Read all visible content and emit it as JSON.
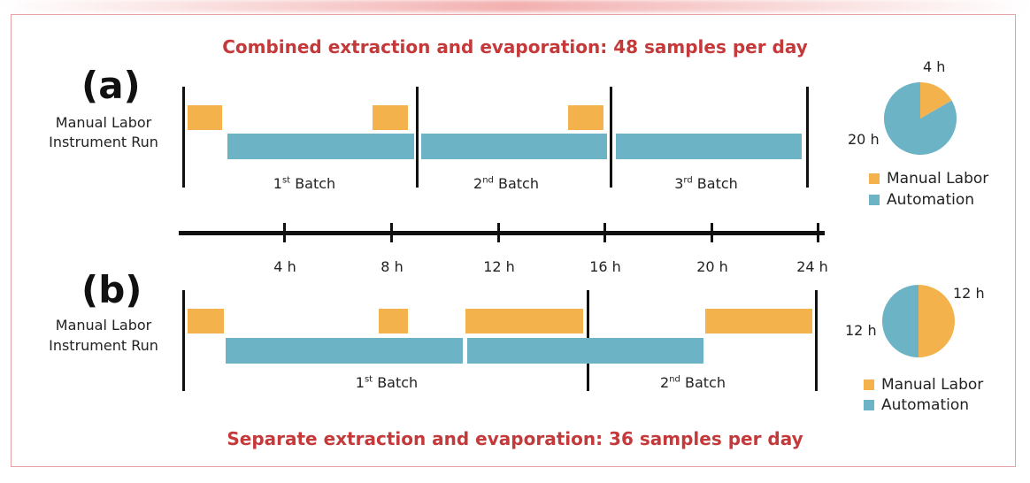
{
  "colors": {
    "manual": "#f4b24c",
    "automation": "#6db3c6",
    "title": "#c4393a"
  },
  "titles": {
    "top": "Combined extraction and evaporation: 48 samples per day",
    "bottom": "Separate extraction and evaporation: 36 samples per day"
  },
  "panel_a": {
    "letter": "(a)",
    "row_labels": [
      "Manual Labor",
      "Instrument Run"
    ],
    "batches": [
      {
        "ord": "1",
        "sup": "st",
        "word": "Batch"
      },
      {
        "ord": "2",
        "sup": "nd",
        "word": "Batch"
      },
      {
        "ord": "3",
        "sup": "rd",
        "word": "Batch"
      }
    ],
    "pie": {
      "manual_hours": 4,
      "automation_hours": 20,
      "manual_label": "4 h",
      "automation_label": "20 h"
    },
    "legend": {
      "manual": "Manual Labor",
      "automation": "Automation"
    }
  },
  "panel_b": {
    "letter": "(b)",
    "row_labels": [
      "Manual Labor",
      "Instrument Run"
    ],
    "batches": [
      {
        "ord": "1",
        "sup": "st",
        "word": "Batch"
      },
      {
        "ord": "2",
        "sup": "nd",
        "word": "Batch"
      }
    ],
    "pie": {
      "manual_hours": 12,
      "automation_hours": 12,
      "manual_label": "12 h",
      "automation_label": "12 h"
    },
    "legend": {
      "manual": "Manual Labor",
      "automation": "Automation"
    }
  },
  "axis": {
    "ticks": [
      "4 h",
      "8 h",
      "12 h",
      "16 h",
      "20 h",
      "24 h"
    ]
  }
}
